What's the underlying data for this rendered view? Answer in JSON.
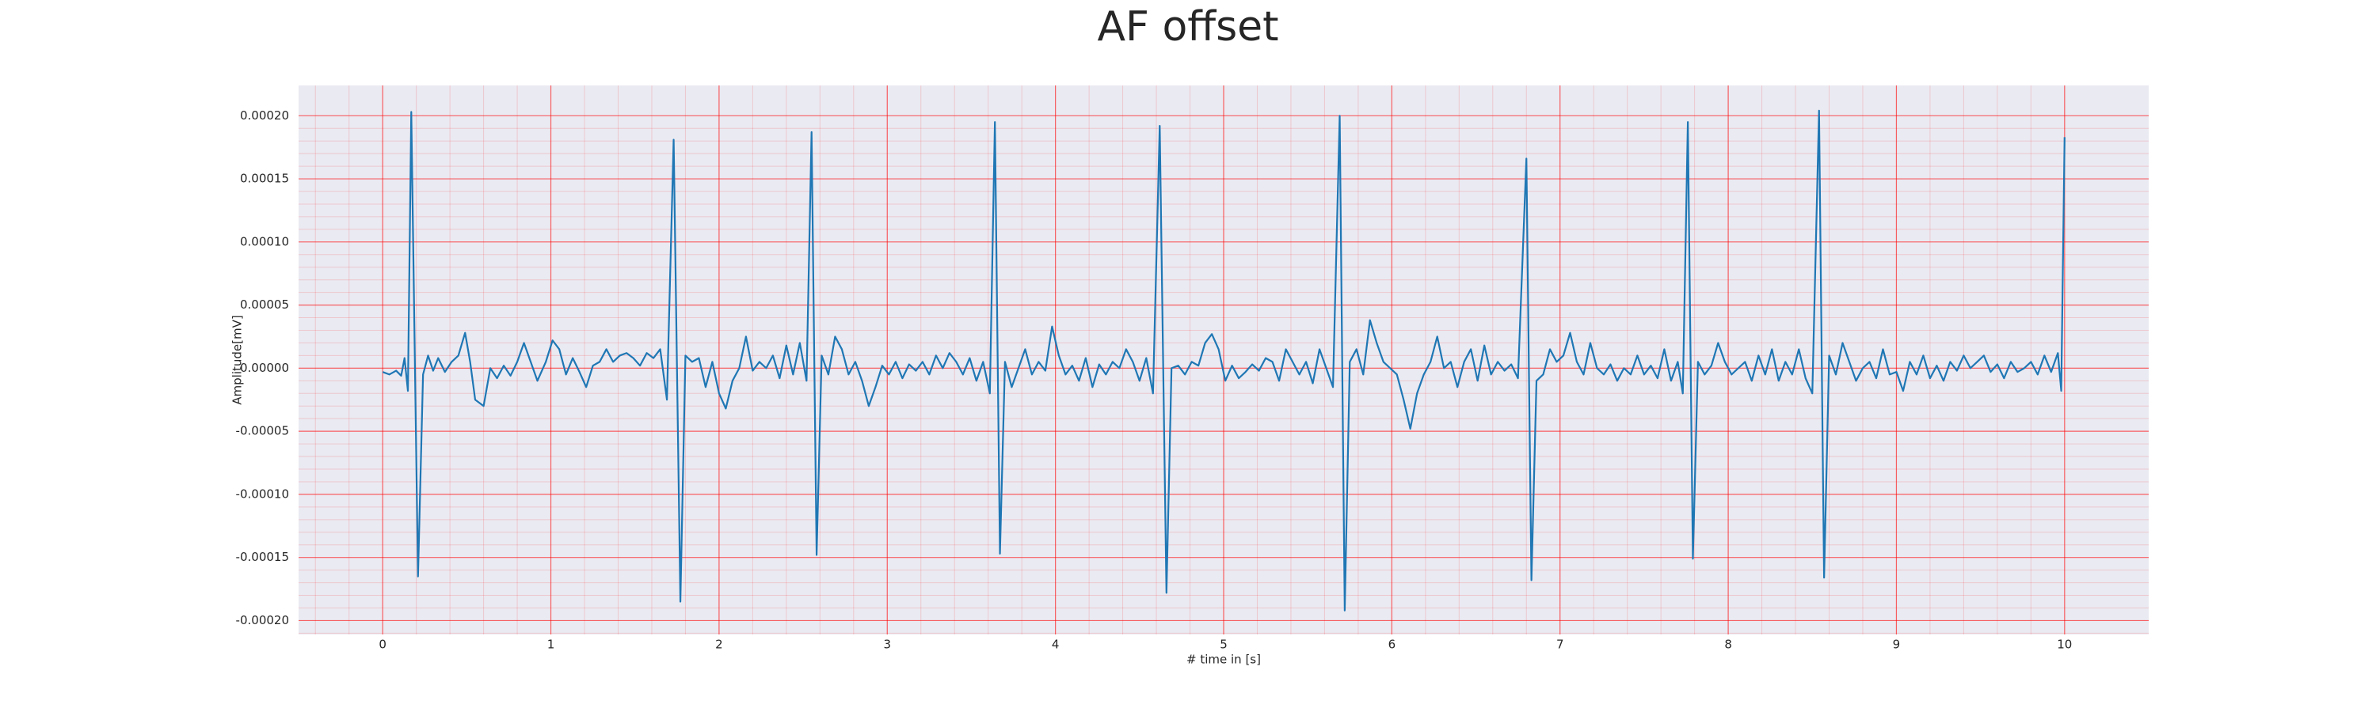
{
  "chart_data": {
    "type": "line",
    "title": "AF offset",
    "xlabel": "# time in [s]",
    "ylabel": "Amplitude[mV]",
    "color": "#1f77b4",
    "grid": true,
    "grid_color": "#ff0000",
    "background": "#eaeaf2",
    "xlim": [
      -0.5,
      10.5
    ],
    "xticks": [
      0,
      1,
      2,
      3,
      4,
      5,
      6,
      7,
      8,
      9,
      10
    ],
    "ylim": [
      -0.000211,
      0.000224
    ],
    "yticks": [
      {
        "value": -0.0002,
        "label": "-0.00020"
      },
      {
        "value": -0.00015,
        "label": "-0.00015"
      },
      {
        "value": -0.0001,
        "label": "-0.00010"
      },
      {
        "value": -5e-05,
        "label": "-0.00005"
      },
      {
        "value": 0,
        "label": "0.00000"
      },
      {
        "value": 5e-05,
        "label": "0.00005"
      },
      {
        "value": 0.0001,
        "label": "0.00010"
      },
      {
        "value": 0.00015,
        "label": "0.00015"
      },
      {
        "value": 0.0002,
        "label": "0.00020"
      }
    ],
    "x": [
      0,
      0.04,
      0.08,
      0.11,
      0.13,
      0.15,
      0.17,
      0.21,
      0.24,
      0.27,
      0.3,
      0.33,
      0.37,
      0.41,
      0.45,
      0.49,
      0.52,
      0.55,
      0.6,
      0.64,
      0.68,
      0.72,
      0.76,
      0.8,
      0.84,
      0.88,
      0.92,
      0.97,
      1.01,
      1.05,
      1.09,
      1.13,
      1.17,
      1.21,
      1.25,
      1.29,
      1.33,
      1.37,
      1.41,
      1.45,
      1.49,
      1.53,
      1.57,
      1.61,
      1.65,
      1.69,
      1.73,
      1.77,
      1.8,
      1.84,
      1.88,
      1.92,
      1.96,
      2.0,
      2.04,
      2.08,
      2.12,
      2.16,
      2.2,
      2.24,
      2.28,
      2.32,
      2.36,
      2.4,
      2.44,
      2.48,
      2.52,
      2.55,
      2.58,
      2.61,
      2.65,
      2.69,
      2.73,
      2.77,
      2.81,
      2.85,
      2.89,
      2.93,
      2.97,
      3.01,
      3.05,
      3.09,
      3.13,
      3.17,
      3.21,
      3.25,
      3.29,
      3.33,
      3.37,
      3.41,
      3.45,
      3.49,
      3.53,
      3.57,
      3.61,
      3.64,
      3.67,
      3.7,
      3.74,
      3.78,
      3.82,
      3.86,
      3.9,
      3.94,
      3.98,
      4.02,
      4.06,
      4.1,
      4.14,
      4.18,
      4.22,
      4.26,
      4.3,
      4.34,
      4.38,
      4.42,
      4.46,
      4.5,
      4.54,
      4.58,
      4.62,
      4.66,
      4.69,
      4.73,
      4.77,
      4.81,
      4.85,
      4.89,
      4.93,
      4.97,
      5.01,
      5.05,
      5.09,
      5.13,
      5.17,
      5.21,
      5.25,
      5.29,
      5.33,
      5.37,
      5.41,
      5.45,
      5.49,
      5.53,
      5.57,
      5.61,
      5.65,
      5.69,
      5.72,
      5.75,
      5.79,
      5.83,
      5.87,
      5.91,
      5.95,
      5.99,
      6.03,
      6.07,
      6.11,
      6.15,
      6.19,
      6.23,
      6.27,
      6.31,
      6.35,
      6.39,
      6.43,
      6.47,
      6.51,
      6.55,
      6.59,
      6.63,
      6.67,
      6.71,
      6.75,
      6.8,
      6.83,
      6.86,
      6.9,
      6.94,
      6.98,
      7.02,
      7.06,
      7.1,
      7.14,
      7.18,
      7.22,
      7.26,
      7.3,
      7.34,
      7.38,
      7.42,
      7.46,
      7.5,
      7.54,
      7.58,
      7.62,
      7.66,
      7.7,
      7.73,
      7.76,
      7.79,
      7.82,
      7.86,
      7.9,
      7.94,
      7.98,
      8.02,
      8.06,
      8.1,
      8.14,
      8.18,
      8.22,
      8.26,
      8.3,
      8.34,
      8.38,
      8.42,
      8.46,
      8.5,
      8.54,
      8.57,
      8.6,
      8.64,
      8.68,
      8.72,
      8.76,
      8.8,
      8.84,
      8.88,
      8.92,
      8.96,
      9.0,
      9.04,
      9.08,
      9.12,
      9.16,
      9.2,
      9.24,
      9.28,
      9.32,
      9.36,
      9.4,
      9.44,
      9.48,
      9.52,
      9.56,
      9.6,
      9.64,
      9.68,
      9.72,
      9.76,
      9.8,
      9.84,
      9.88,
      9.92,
      9.96,
      9.98,
      10
    ],
    "values": [
      -3e-06,
      -5e-06,
      -2e-06,
      -6e-06,
      8e-06,
      -1.8e-05,
      0.000203,
      -0.000165,
      -5e-06,
      1e-05,
      -2e-06,
      8e-06,
      -3e-06,
      5e-06,
      1e-05,
      2.8e-05,
      5e-06,
      -2.5e-05,
      -3e-05,
      0,
      -8e-06,
      2e-06,
      -6e-06,
      5e-06,
      2e-05,
      5e-06,
      -1e-05,
      5e-06,
      2.2e-05,
      1.5e-05,
      -5e-06,
      8e-06,
      -3e-06,
      -1.5e-05,
      2e-06,
      5e-06,
      1.5e-05,
      5e-06,
      1e-05,
      1.2e-05,
      8e-06,
      2e-06,
      1.2e-05,
      8e-06,
      1.5e-05,
      -2.5e-05,
      0.000181,
      -0.000185,
      1e-05,
      5e-06,
      8e-06,
      -1.5e-05,
      5e-06,
      -2e-05,
      -3.2e-05,
      -1e-05,
      0,
      2.5e-05,
      -2e-06,
      5e-06,
      0,
      1e-05,
      -8e-06,
      1.8e-05,
      -5e-06,
      2e-05,
      -1e-05,
      0.000187,
      -0.000148,
      1e-05,
      -5e-06,
      2.5e-05,
      1.5e-05,
      -5e-06,
      5e-06,
      -1e-05,
      -3e-05,
      -1.5e-05,
      2e-06,
      -5e-06,
      5e-06,
      -8e-06,
      3e-06,
      -2e-06,
      5e-06,
      -5e-06,
      1e-05,
      0,
      1.2e-05,
      5e-06,
      -5e-06,
      8e-06,
      -1e-05,
      5e-06,
      -2e-05,
      0.000195,
      -0.000147,
      5e-06,
      -1.5e-05,
      0,
      1.5e-05,
      -5e-06,
      5e-06,
      -2e-06,
      3.3e-05,
      1e-05,
      -5e-06,
      2e-06,
      -1e-05,
      8e-06,
      -1.5e-05,
      3e-06,
      -5e-06,
      5e-06,
      0,
      1.5e-05,
      5e-06,
      -1e-05,
      8e-06,
      -2e-05,
      0.000192,
      -0.000178,
      0,
      2e-06,
      -5e-06,
      5e-06,
      2e-06,
      2e-05,
      2.7e-05,
      1.5e-05,
      -1e-05,
      2e-06,
      -8e-06,
      -3e-06,
      3e-06,
      -2e-06,
      8e-06,
      5e-06,
      -1e-05,
      1.5e-05,
      5e-06,
      -5e-06,
      5e-06,
      -1.2e-05,
      1.5e-05,
      0,
      -1.5e-05,
      0.0002,
      -0.000192,
      5e-06,
      1.5e-05,
      -5e-06,
      3.8e-05,
      2e-05,
      5e-06,
      0,
      -5e-06,
      -2.5e-05,
      -4.8e-05,
      -2e-05,
      -5e-06,
      5e-06,
      2.5e-05,
      0,
      5e-06,
      -1.5e-05,
      5e-06,
      1.5e-05,
      -1e-05,
      1.8e-05,
      -5e-06,
      5e-06,
      -2e-06,
      3e-06,
      -8e-06,
      0.000166,
      -0.000168,
      -1e-05,
      -5e-06,
      1.5e-05,
      5e-06,
      1e-05,
      2.8e-05,
      5e-06,
      -5e-06,
      2e-05,
      0,
      -5e-06,
      3e-06,
      -1e-05,
      0,
      -5e-06,
      1e-05,
      -5e-06,
      2e-06,
      -8e-06,
      1.5e-05,
      -1e-05,
      5e-06,
      -2e-05,
      0.000195,
      -0.000151,
      5e-06,
      -5e-06,
      2e-06,
      2e-05,
      5e-06,
      -5e-06,
      0,
      5e-06,
      -1e-05,
      1e-05,
      -5e-06,
      1.5e-05,
      -1e-05,
      5e-06,
      -5e-06,
      1.5e-05,
      -8e-06,
      -2e-05,
      0.000204,
      -0.000166,
      1e-05,
      -5e-06,
      2e-05,
      5e-06,
      -1e-05,
      0,
      5e-06,
      -8e-06,
      1.5e-05,
      -5e-06,
      -3e-06,
      -1.8e-05,
      5e-06,
      -5e-06,
      1e-05,
      -8e-06,
      2e-06,
      -1e-05,
      5e-06,
      -2e-06,
      1e-05,
      0,
      5e-06,
      1e-05,
      -3e-06,
      3e-06,
      -8e-06,
      5e-06,
      -3e-06,
      0,
      5e-06,
      -5e-06,
      1e-05,
      -3e-06,
      1.2e-05,
      -1.8e-05,
      0.000183
    ]
  }
}
